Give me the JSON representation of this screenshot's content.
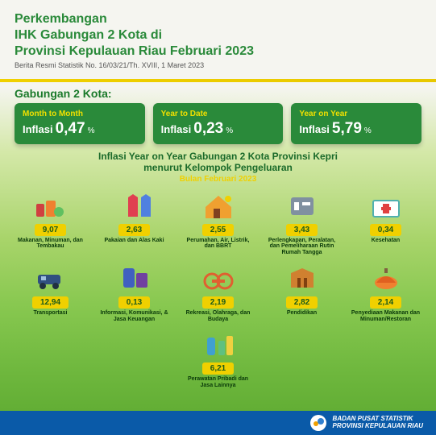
{
  "header": {
    "line1": "Perkembangan",
    "line2": "IHK Gabungan 2 Kota di",
    "line3": "Provinsi Kepulauan Riau Februari 2023",
    "subtitle": "Berita Resmi Statistik No. 16/03/21/Th. XVIII, 1 Maret 2023"
  },
  "section_label": "Gabungan 2 Kota:",
  "cards": [
    {
      "title": "Month to Month",
      "label": "Inflasi",
      "value": "0,47",
      "pct": "%"
    },
    {
      "title": "Year to Date",
      "label": "Inflasi",
      "value": "0,23",
      "pct": "%"
    },
    {
      "title": "Year on Year",
      "label": "Inflasi",
      "value": "5,79",
      "pct": "%"
    }
  ],
  "mid": {
    "line1": "Inflasi Year on Year Gabungan 2 Kota Provinsi Kepri",
    "line2": "menurut Kelompok Pengeluaran",
    "line3": "Bulan Februari 2023"
  },
  "categories": [
    {
      "value": "9,07",
      "label": "Makanan, Minuman, dan Tembakau",
      "icon": "food"
    },
    {
      "value": "2,63",
      "label": "Pakaian dan Alas Kaki",
      "icon": "clothes"
    },
    {
      "value": "2,55",
      "label": "Perumahan, Air, Listrik, dan BBRT",
      "icon": "house"
    },
    {
      "value": "3,43",
      "label": "Perlengkapan, Peralatan, dan Pemeliharaan Rutin Rumah Tangga",
      "icon": "tools"
    },
    {
      "value": "0,34",
      "label": "Kesehatan",
      "icon": "health"
    },
    {
      "value": "12,94",
      "label": "Transportasi",
      "icon": "transport"
    },
    {
      "value": "0,13",
      "label": "Informasi, Komunikasi, & Jasa Keuangan",
      "icon": "info"
    },
    {
      "value": "2,19",
      "label": "Rekreasi, Olahraga, dan Budaya",
      "icon": "sport"
    },
    {
      "value": "2,82",
      "label": "Pendidikan",
      "icon": "edu"
    },
    {
      "value": "2,14",
      "label": "Penyediaan Makanan dan Minuman/Restoran",
      "icon": "resto"
    },
    {
      "value": "6,21",
      "label": "Perawatan Pribadi dan Jasa Lainnya",
      "icon": "care"
    }
  ],
  "footer": {
    "line1": "BADAN PUSAT STATISTIK",
    "line2": "PROVINSI KEPULAUAN RIAU"
  },
  "colors": {
    "green_dark": "#2a8a3a",
    "green_text": "#1a7a2a",
    "yellow": "#f0d000",
    "footer_blue": "#0a5aa8",
    "badge_bg": "#f0d000"
  },
  "icons_svg": {
    "food": "<rect x='2' y='14' width='10' height='16' rx='2' fill='#d04040'/><rect x='14' y='10' width='12' height='20' rx='2' fill='#f08030'/><circle cx='30' cy='24' r='6' fill='#60c060'/>",
    "clothes": "<path d='M12 6 L18 2 L24 6 L24 30 L12 30 Z' fill='#e04050'/><path d='M28 6 L34 2 L40 6 L40 30 L28 30 Z' fill='#5080e0'/>",
    "house": "<path d='M4 18 L20 4 L36 18 L36 32 L4 32 Z' fill='#f0a030'/><rect x='14' y='20' width='8' height='12' fill='#804020'/><circle cx='32' cy='8' r='4' fill='#f0d000'/>",
    "tools": "<rect x='6' y='6' width='28' height='22' rx='3' fill='#8090a0'/><rect x='10' y='12' width='6' height='10' fill='#fff'/><rect x='20' y='12' width='10' height='4' fill='#fff'/>",
    "health": "<rect x='4' y='10' width='32' height='20' rx='2' fill='#fff' stroke='#50b0b0' stroke-width='2'/><rect x='16' y='14' width='8' height='12' fill='#e04040'/><rect x='14' y='18' width='12' height='4' fill='#e04040'/>",
    "transport": "<rect x='4' y='12' width='28' height='12' rx='3' fill='#305080'/><circle cx='10' cy='26' r='4' fill='#203040'/><circle cx='26' cy='26' r='4' fill='#203040'/><rect x='8' y='14' width='6' height='5' fill='#a0c0e0'/>",
    "info": "<rect x='6' y='4' width='14' height='24' rx='3' fill='#4060c0'/><rect x='22' y='10' width='14' height='18' rx='2' fill='#7040a0'/>",
    "sport": "<circle cx='12' cy='20' r='9' fill='none' stroke='#e06030' stroke-width='3'/><circle cx='28' cy='20' r='9' fill='none' stroke='#e06030' stroke-width='3'/><rect x='12' y='18' width='16' height='4' fill='#e06030'/>",
    "edu": "<path d='M6 28 L6 10 L20 4 L34 10 L34 28 Z' fill='#d08030'/><rect x='14' y='16' width='4' height='12' fill='#804010'/><rect x='22' y='16' width='4' height='12' fill='#804010'/>",
    "resto": "<ellipse cx='20' cy='22' rx='14' ry='8' fill='#f08030'/><path d='M8 22 Q20 6 32 22' fill='#e06020'/><rect x='18' y='4' width='4' height='6' fill='#806040'/>",
    "care": "<rect x='6' y='8' width='10' height='22' rx='3' fill='#40a0d0'/><rect x='20' y='12' width='8' height='18' rx='2' fill='#60c080'/><rect x='30' y='6' width='8' height='24' rx='2' fill='#f0d040'/>"
  }
}
